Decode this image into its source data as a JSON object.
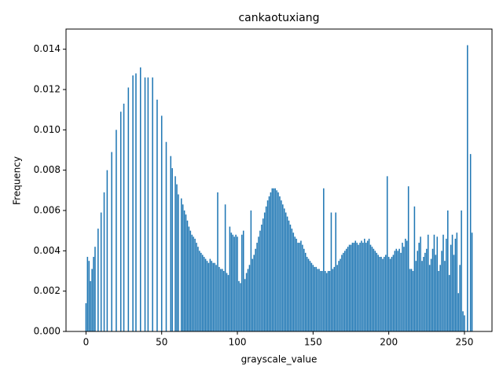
{
  "chart_data": {
    "type": "bar",
    "title": "cankaotuxiang",
    "x_label": "grayscale_value",
    "y_label": "Frequency",
    "color": "#1f77b4",
    "x": [
      0,
      1,
      2,
      3,
      4,
      5,
      6,
      7,
      8,
      9,
      10,
      11,
      12,
      13,
      14,
      15,
      16,
      17,
      18,
      19,
      20,
      21,
      22,
      23,
      24,
      25,
      26,
      27,
      28,
      29,
      30,
      31,
      32,
      33,
      34,
      35,
      36,
      37,
      38,
      39,
      40,
      41,
      42,
      43,
      44,
      45,
      46,
      47,
      48,
      49,
      50,
      51,
      52,
      53,
      54,
      55,
      56,
      57,
      58,
      59,
      60,
      61,
      62,
      63,
      64,
      65,
      66,
      67,
      68,
      69,
      70,
      71,
      72,
      73,
      74,
      75,
      76,
      77,
      78,
      79,
      80,
      81,
      82,
      83,
      84,
      85,
      86,
      87,
      88,
      89,
      90,
      91,
      92,
      93,
      94,
      95,
      96,
      97,
      98,
      99,
      100,
      101,
      102,
      103,
      104,
      105,
      106,
      107,
      108,
      109,
      110,
      111,
      112,
      113,
      114,
      115,
      116,
      117,
      118,
      119,
      120,
      121,
      122,
      123,
      124,
      125,
      126,
      127,
      128,
      129,
      130,
      131,
      132,
      133,
      134,
      135,
      136,
      137,
      138,
      139,
      140,
      141,
      142,
      143,
      144,
      145,
      146,
      147,
      148,
      149,
      150,
      151,
      152,
      153,
      154,
      155,
      156,
      157,
      158,
      159,
      160,
      161,
      162,
      163,
      164,
      165,
      166,
      167,
      168,
      169,
      170,
      171,
      172,
      173,
      174,
      175,
      176,
      177,
      178,
      179,
      180,
      181,
      182,
      183,
      184,
      185,
      186,
      187,
      188,
      189,
      190,
      191,
      192,
      193,
      194,
      195,
      196,
      197,
      198,
      199,
      200,
      201,
      202,
      203,
      204,
      205,
      206,
      207,
      208,
      209,
      210,
      211,
      212,
      213,
      214,
      215,
      216,
      217,
      218,
      219,
      220,
      221,
      222,
      223,
      224,
      225,
      226,
      227,
      228,
      229,
      230,
      231,
      232,
      233,
      234,
      235,
      236,
      237,
      238,
      239,
      240,
      241,
      242,
      243,
      244,
      245,
      246,
      247,
      248,
      249,
      250,
      251,
      252,
      253,
      254,
      255
    ],
    "values": [
      0.0014,
      0.0037,
      0.0035,
      0.0025,
      0.0031,
      0.0037,
      0.0042,
      0,
      0.0051,
      0,
      0.0059,
      0,
      0.0069,
      0,
      0.008,
      0,
      0,
      0.0089,
      0,
      0,
      0.01,
      0,
      0,
      0.0109,
      0,
      0.0113,
      0,
      0,
      0.0121,
      0,
      0,
      0.0127,
      0,
      0.0128,
      0,
      0,
      0.0131,
      0,
      0,
      0.0126,
      0,
      0.0126,
      0,
      0,
      0.0126,
      0,
      0,
      0.0115,
      0,
      0,
      0.0107,
      0,
      0,
      0.0094,
      0,
      0,
      0.0087,
      0.0081,
      0,
      0.0077,
      0.0073,
      0.0068,
      0,
      0.0066,
      0.0063,
      0.006,
      0.0058,
      0.0055,
      0.0052,
      0.005,
      0.0048,
      0.0047,
      0.0046,
      0.0044,
      0.0042,
      0.004,
      0.0039,
      0.0038,
      0.0037,
      0.0036,
      0.0035,
      0.0034,
      0.0036,
      0.0035,
      0.0034,
      0.0034,
      0.0033,
      0.0069,
      0.0032,
      0.0031,
      0.0031,
      0.003,
      0.0063,
      0.0029,
      0.0028,
      0.0052,
      0.0049,
      0.0048,
      0.0047,
      0.0048,
      0.0047,
      0.0025,
      0.0024,
      0.0048,
      0.005,
      0.0026,
      0.0029,
      0.0031,
      0.0033,
      0.006,
      0.0036,
      0.0038,
      0.0041,
      0.0044,
      0.0047,
      0.005,
      0.0053,
      0.0056,
      0.0059,
      0.0062,
      0.0065,
      0.0067,
      0.0069,
      0.0071,
      0.0071,
      0.0071,
      0.007,
      0.0069,
      0.0067,
      0.0065,
      0.0063,
      0.0061,
      0.0059,
      0.0057,
      0.0055,
      0.0053,
      0.0051,
      0.0049,
      0.0047,
      0.0046,
      0.0044,
      0.0044,
      0.0045,
      0.0043,
      0.0041,
      0.0039,
      0.0037,
      0.0036,
      0.0035,
      0.0034,
      0.0033,
      0.0032,
      0.0032,
      0.0031,
      0.0031,
      0.003,
      0.003,
      0.0071,
      0.003,
      0.0029,
      0.003,
      0.003,
      0.0059,
      0.0031,
      0.0032,
      0.0059,
      0.0033,
      0.0035,
      0.0036,
      0.0038,
      0.0039,
      0.004,
      0.0041,
      0.0042,
      0.0043,
      0.0043,
      0.0044,
      0.0044,
      0.0045,
      0.0044,
      0.0043,
      0.0044,
      0.0045,
      0.0044,
      0.0046,
      0.0044,
      0.0045,
      0.0046,
      0.0043,
      0.0042,
      0.0041,
      0.004,
      0.0039,
      0.0038,
      0.0037,
      0.0037,
      0.0036,
      0.0037,
      0.0038,
      0.0077,
      0.0037,
      0.0036,
      0.0037,
      0.0038,
      0.004,
      0.0041,
      0.004,
      0.0041,
      0.0039,
      0.0044,
      0.0042,
      0.0046,
      0.0045,
      0.0072,
      0.0031,
      0.0031,
      0.003,
      0.0062,
      0.0035,
      0.004,
      0.0044,
      0.0047,
      0.0035,
      0.0037,
      0.0039,
      0.0041,
      0.0048,
      0.0033,
      0.0036,
      0.0041,
      0.0048,
      0.0038,
      0.0047,
      0.003,
      0.0033,
      0.004,
      0.0048,
      0.0035,
      0.0046,
      0.006,
      0.0028,
      0.0043,
      0.0048,
      0.0038,
      0.0046,
      0.0049,
      0.0019,
      0.0033,
      0.006,
      0.001,
      0.0008,
      0,
      0.0142,
      0,
      0.0088,
      0.0049
    ],
    "bar_width": 0.8,
    "xlim": [
      -13.19,
      268.19
    ],
    "xticks": [
      0,
      50,
      100,
      150,
      200,
      250
    ],
    "ylim": [
      0,
      0.015
    ],
    "yticks": [
      {
        "value": 0,
        "label": "0.000"
      },
      {
        "value": 0.002,
        "label": "0.002"
      },
      {
        "value": 0.004,
        "label": "0.004"
      },
      {
        "value": 0.006,
        "label": "0.006"
      },
      {
        "value": 0.008,
        "label": "0.008"
      },
      {
        "value": 0.01,
        "label": "0.010"
      },
      {
        "value": 0.012,
        "label": "0.012"
      },
      {
        "value": 0.014,
        "label": "0.014"
      }
    ]
  }
}
